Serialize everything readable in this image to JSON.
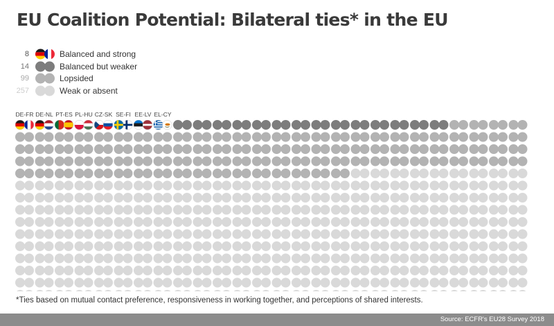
{
  "title": "EU Coalition Potential: Bilateral ties* in the EU",
  "colors": {
    "balanced_strong_fallback": "#7d7d7d",
    "balanced_weaker": "#7d7d7d",
    "lopsided": "#b3b3b3",
    "weak": "#d9d9d9",
    "source_bar": "#8c8c8c"
  },
  "footnote": "*Ties based on mutual contact preference, responsiveness in working together, and perceptions of shared interests.",
  "source": "Source: ECFR's EU28 Survey 2018",
  "chart_data": {
    "type": "waffle",
    "title": "EU Coalition Potential: Bilateral ties* in the EU",
    "grid": {
      "columns": 26,
      "rows": 15
    },
    "categories": [
      {
        "key": "balanced_strong",
        "label": "Balanced and strong",
        "count": 8,
        "color": "#7d7d7d"
      },
      {
        "key": "balanced_weaker",
        "label": "Balanced but weaker",
        "count": 14,
        "color": "#7d7d7d"
      },
      {
        "key": "lopsided",
        "label": "Lopsided",
        "count": 99,
        "color": "#b3b3b3"
      },
      {
        "key": "weak",
        "label": "Weak or absent",
        "count": 257,
        "color": "#d9d9d9"
      }
    ],
    "strong_pairs": [
      {
        "label": "DE-FR",
        "flags": [
          "de",
          "fr"
        ]
      },
      {
        "label": "DE-NL",
        "flags": [
          "de",
          "nl"
        ]
      },
      {
        "label": "PT-ES",
        "flags": [
          "pt",
          "es"
        ]
      },
      {
        "label": "PL-HU",
        "flags": [
          "pl",
          "hu"
        ]
      },
      {
        "label": "CZ-SK",
        "flags": [
          "cz",
          "sk"
        ]
      },
      {
        "label": "SE-FI",
        "flags": [
          "se",
          "fi"
        ]
      },
      {
        "label": "EE-LV",
        "flags": [
          "ee",
          "lv"
        ]
      },
      {
        "label": "EL-CY",
        "flags": [
          "el",
          "cy"
        ]
      }
    ]
  }
}
